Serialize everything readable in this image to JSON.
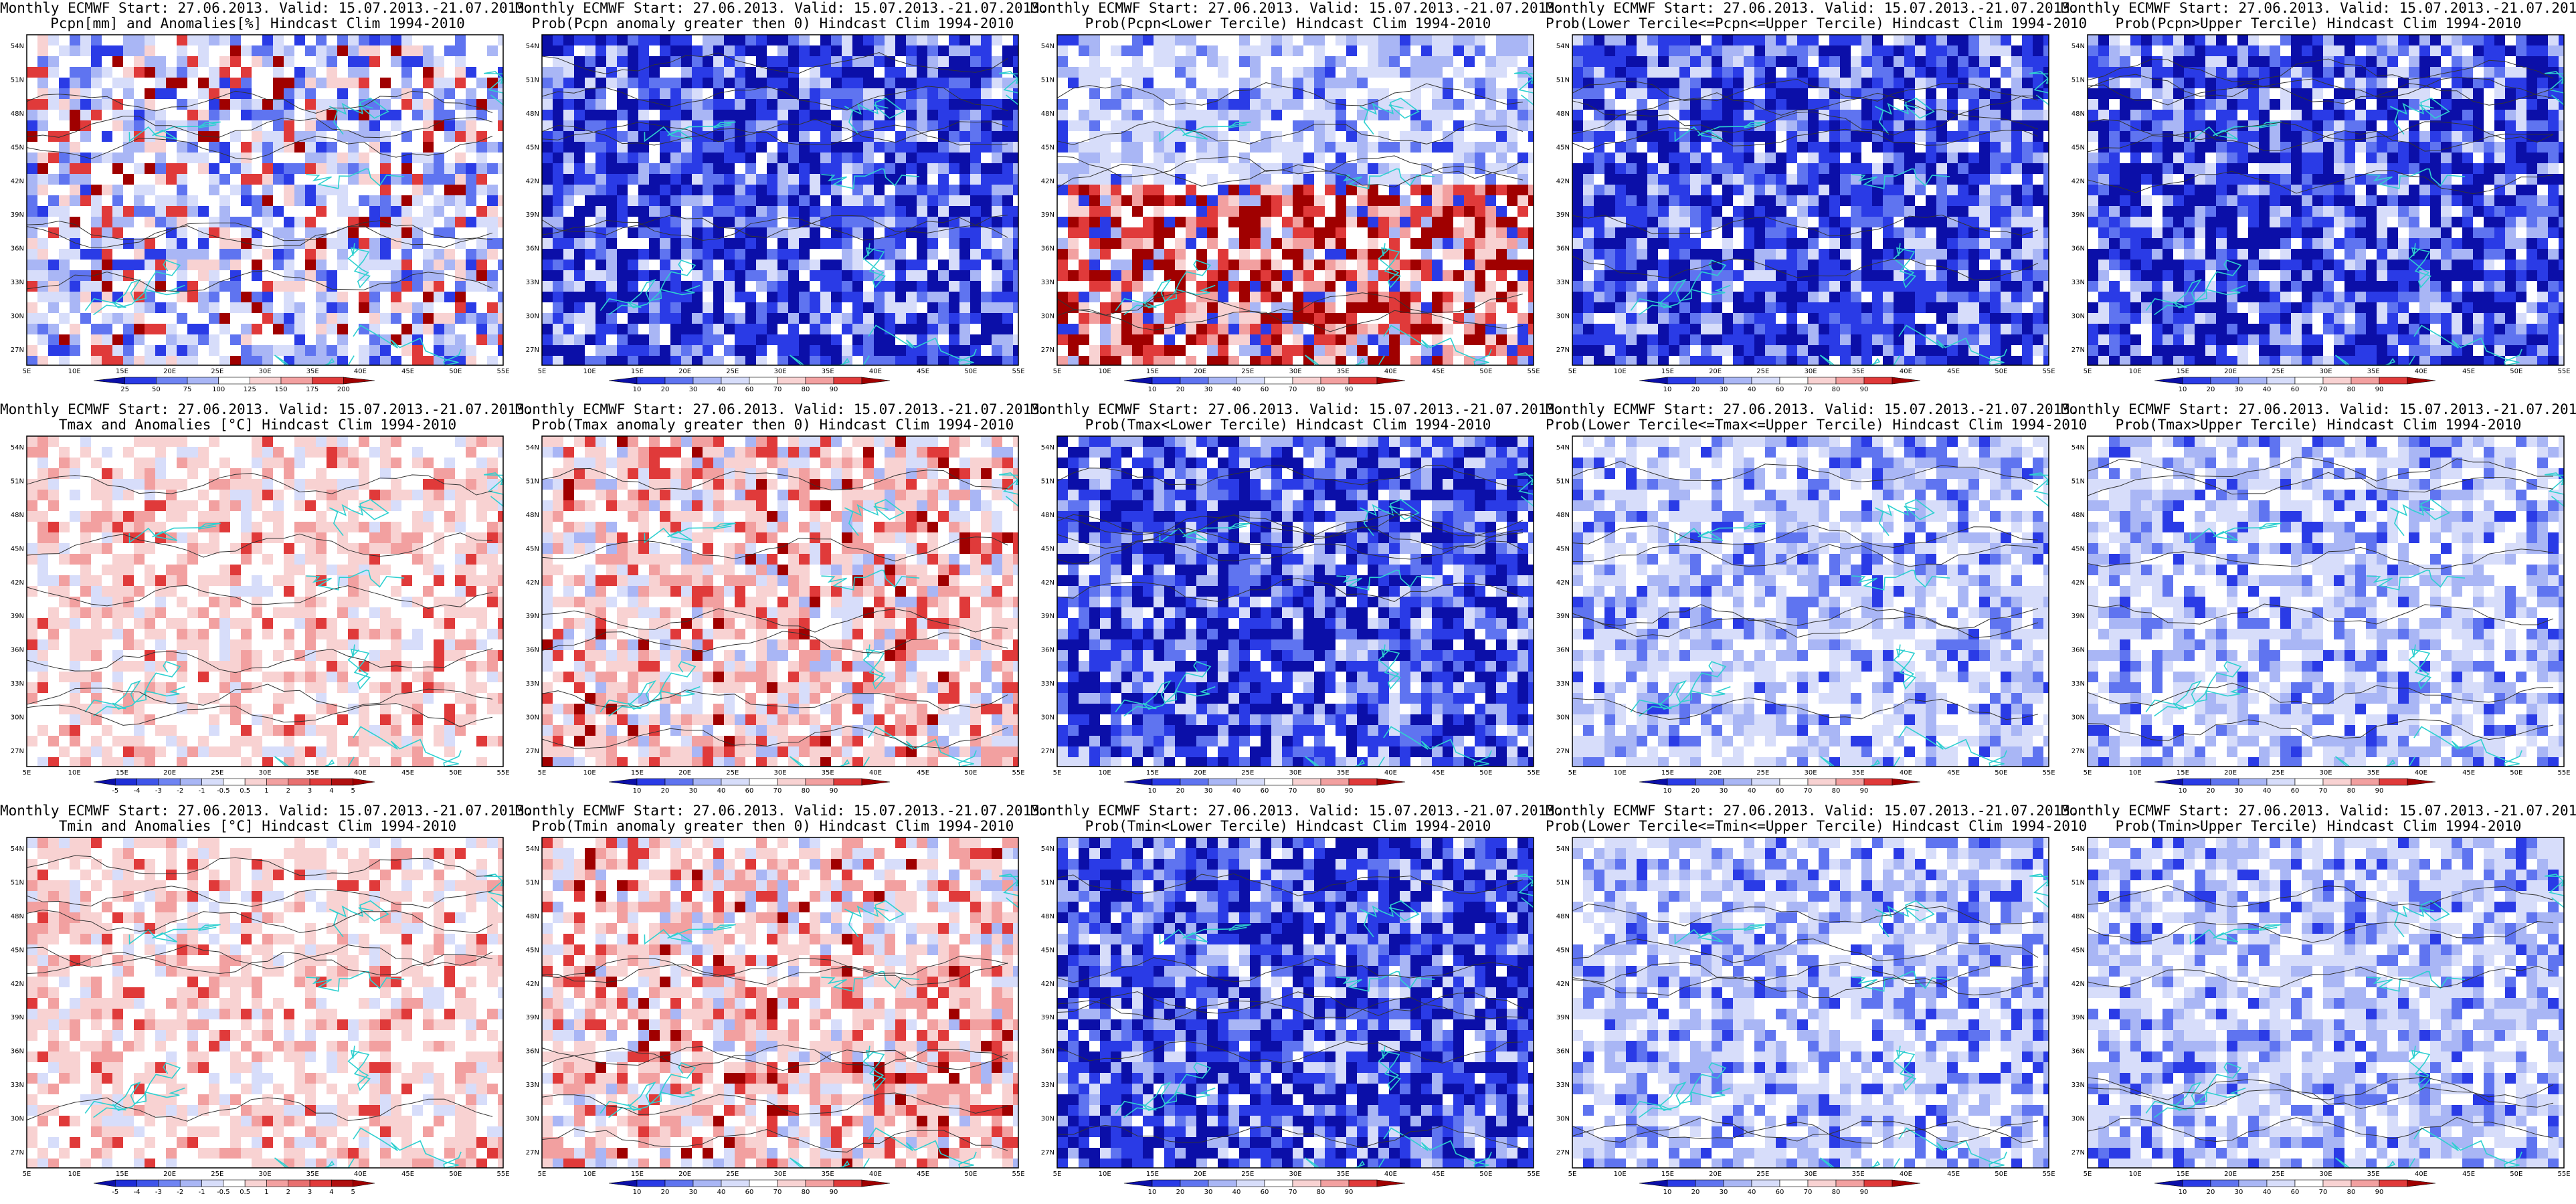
{
  "header_line": "Monthly ECMWF Start: 27.06.2013. Valid: 15.07.2013.-21.07.2013.",
  "map": {
    "lat_labels": [
      "54N",
      "51N",
      "48N",
      "45N",
      "42N",
      "39N",
      "36N",
      "33N",
      "30N",
      "27N"
    ],
    "lon_labels": [
      "5E",
      "10E",
      "15E",
      "20E",
      "25E",
      "30E",
      "35E",
      "40E",
      "45E",
      "50E",
      "55E"
    ]
  },
  "colors": {
    "dark_blue": "#0b0fa8",
    "blue": "#2a3be6",
    "mid_blue": "#5f74f0",
    "light_blue": "#a9b6f5",
    "pale_blue": "#d7ddfa",
    "white": "#ffffff",
    "pale_red": "#f8d2d2",
    "light_red": "#f2a0a0",
    "red": "#e03a3a",
    "dark_red": "#a00000",
    "coast": "#2fd0d0",
    "contour": "#333333"
  },
  "panels": [
    {
      "title": "Pcpn[mm] and Anomalies[%] Hindcast Clim 1994-2010",
      "theme": "precip_anom",
      "colorbar": [
        "25",
        "50",
        "75",
        "100",
        "125",
        "150",
        "175",
        "200"
      ]
    },
    {
      "title": "Prob(Pcpn anomaly greater then 0) Hindcast Clim 1994-2010",
      "theme": "blue_heavy",
      "colorbar": [
        "10",
        "20",
        "30",
        "40",
        "60",
        "70",
        "80",
        "90"
      ]
    },
    {
      "title": "Prob(Pcpn<Lower Tercile) Hindcast Clim 1994-2010",
      "theme": "red_south",
      "colorbar": [
        "10",
        "20",
        "30",
        "40",
        "60",
        "70",
        "80",
        "90"
      ]
    },
    {
      "title": "Prob(Lower Tercile<=Pcpn<=Upper Tercile) Hindcast Clim 1994-2010",
      "theme": "blue_heavy",
      "colorbar": [
        "10",
        "20",
        "30",
        "40",
        "60",
        "70",
        "80",
        "90"
      ]
    },
    {
      "title": "Prob(Pcpn>Upper Tercile) Hindcast Clim 1994-2010",
      "theme": "blue_heavy",
      "colorbar": [
        "10",
        "20",
        "30",
        "40",
        "60",
        "70",
        "80",
        "90"
      ]
    },
    {
      "title": "Tmax and Anomalies [°C] Hindcast Clim 1994-2010",
      "theme": "pale_red",
      "colorbar": [
        "-5",
        "-4",
        "-3",
        "-2",
        "-1",
        "-0.5",
        "0.5",
        "1",
        "2",
        "3",
        "4",
        "5"
      ]
    },
    {
      "title": "Prob(Tmax anomaly greater then 0) Hindcast Clim 1994-2010",
      "theme": "red_mixed",
      "colorbar": [
        "10",
        "20",
        "30",
        "40",
        "60",
        "70",
        "80",
        "90"
      ]
    },
    {
      "title": "Prob(Tmax<Lower Tercile) Hindcast Clim 1994-2010",
      "theme": "blue_heavy",
      "colorbar": [
        "10",
        "20",
        "30",
        "40",
        "60",
        "70",
        "80",
        "90"
      ]
    },
    {
      "title": "Prob(Lower Tercile<=Tmax<=Upper Tercile) Hindcast Clim 1994-2010",
      "theme": "blue_light",
      "colorbar": [
        "10",
        "20",
        "30",
        "40",
        "60",
        "70",
        "80",
        "90"
      ]
    },
    {
      "title": "Prob(Tmax>Upper Tercile) Hindcast Clim 1994-2010",
      "theme": "blue_light",
      "colorbar": [
        "10",
        "20",
        "30",
        "40",
        "60",
        "70",
        "80",
        "90"
      ]
    },
    {
      "title": "Tmin and Anomalies [°C] Hindcast Clim 1994-2010",
      "theme": "pale_red",
      "colorbar": [
        "-5",
        "-4",
        "-3",
        "-2",
        "-1",
        "-0.5",
        "0.5",
        "1",
        "2",
        "3",
        "4",
        "5"
      ]
    },
    {
      "title": "Prob(Tmin anomaly greater then 0) Hindcast Clim 1994-2010",
      "theme": "red_mixed",
      "colorbar": [
        "10",
        "20",
        "30",
        "40",
        "60",
        "70",
        "80",
        "90"
      ]
    },
    {
      "title": "Prob(Tmin<Lower Tercile) Hindcast Clim 1994-2010",
      "theme": "blue_heavy",
      "colorbar": [
        "10",
        "20",
        "30",
        "40",
        "60",
        "70",
        "80",
        "90"
      ]
    },
    {
      "title": "Prob(Lower Tercile<=Tmin<=Upper Tercile) Hindcast Clim 1994-2010",
      "theme": "blue_light",
      "colorbar": [
        "10",
        "20",
        "30",
        "40",
        "60",
        "70",
        "80",
        "90"
      ]
    },
    {
      "title": "Prob(Tmin>Upper Tercile) Hindcast Clim 1994-2010",
      "theme": "blue_light",
      "colorbar": [
        "10",
        "20",
        "30",
        "40",
        "60",
        "70",
        "80",
        "90"
      ]
    }
  ]
}
